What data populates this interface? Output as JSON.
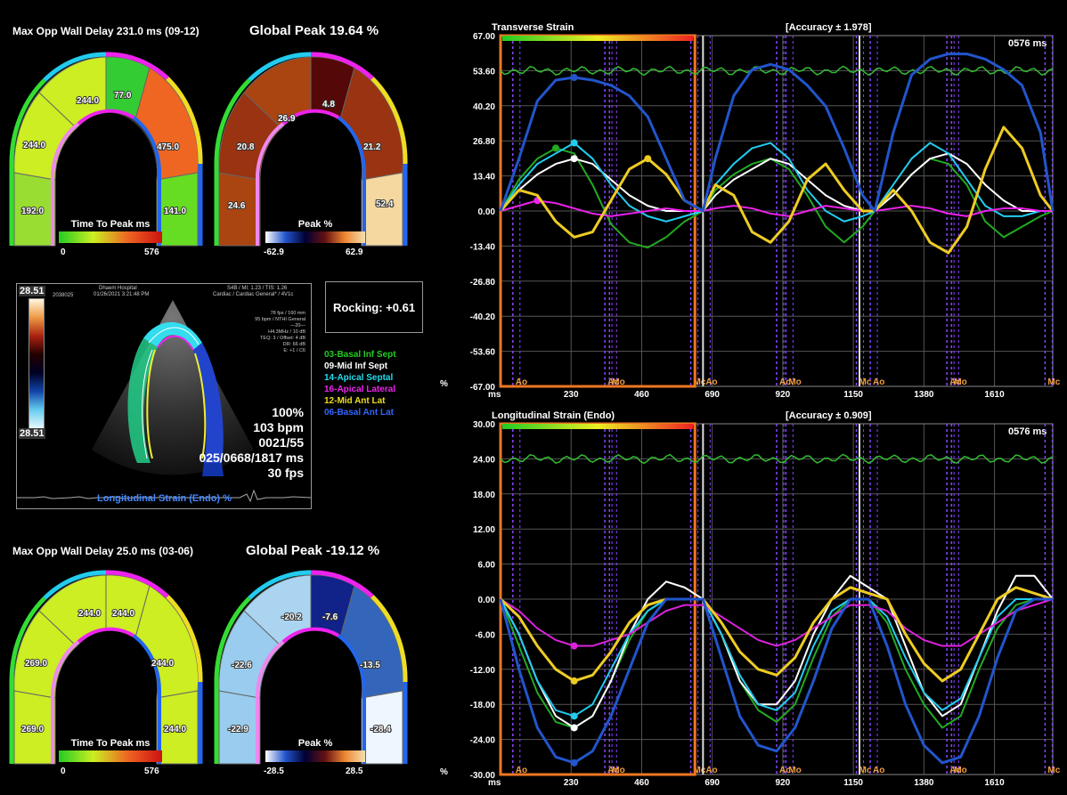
{
  "top_left": {
    "delay_title": "Max Opp Wall Delay 231.0 ms (09-12)",
    "global_peak": "Global Peak 19.64 %",
    "ttp_values": [
      "192.0",
      "244.0",
      "244.0",
      "77.0",
      "475.0",
      "141.0"
    ],
    "ttp_bar_title": "Time To Peak ms",
    "ttp_min": "0",
    "ttp_max": "576",
    "peak_values": [
      "24.6",
      "20.8",
      "26.9",
      "4.8",
      "21.2",
      "52.4"
    ],
    "peak_bar_title": "Peak %",
    "peak_min": "-62.9",
    "peak_max": "62.9"
  },
  "bottom_left": {
    "delay_title": "Max Opp Wall Delay 25.0 ms (03-06)",
    "global_peak": "Global Peak -19.12 %",
    "ttp_values": [
      "269.0",
      "269.0",
      "244.0",
      "244.0",
      "244.0",
      "244.0"
    ],
    "ttp_bar_title": "Time To Peak ms",
    "ttp_min": "0",
    "ttp_max": "576",
    "peak_values": [
      "-22.9",
      "-22.6",
      "-20.2",
      "-7.6",
      "-13.5",
      "-28.4"
    ],
    "peak_bar_title": "Peak %",
    "peak_min": "-28.5",
    "peak_max": "28.5"
  },
  "echo": {
    "scale_top": "28.51",
    "scale_bottom": "28.51",
    "small_text_left": "2038025",
    "hospital": "Dhaem Hospital",
    "date": "01/26/2021 3:21:48 PM",
    "probe_info": "S4B / MI: 1.23 / TIS: 1.26",
    "preset": "Cardiac / Cardiac General* / 4V1c",
    "params": [
      "78 fps / 160 mm",
      "95 bpm / NTHI General",
      "—20—",
      "H4.3MHz / 10 dB",
      "TEQ: 3 / Offset: 4 dB",
      "DR: 66 dB",
      "E: +1 / C6"
    ],
    "zoom": "100%",
    "bpm": "103 bpm",
    "frame": "0021/55",
    "timing": "025/0668/1817 ms",
    "fps": "30 fps",
    "mode": "Longitudinal Strain (Endo) %"
  },
  "rocking": "Rocking: +0.61",
  "legend": [
    {
      "label": "03-Basal Inf Sept",
      "color": "#22cc22"
    },
    {
      "label": "09-Mid Inf Sept",
      "color": "#ffffff"
    },
    {
      "label": "14-Apical Septal",
      "color": "#22ddee"
    },
    {
      "label": "16-Apical Lateral",
      "color": "#ee22ee"
    },
    {
      "label": "12-Mid Ant Lat",
      "color": "#eedd22"
    },
    {
      "label": "06-Basal Ant Lat",
      "color": "#2255ee"
    }
  ],
  "chart_data": [
    {
      "type": "line",
      "title": "Transverse Strain",
      "accuracy": "[Accuracy ± 1.978]",
      "time_label": "0576 ms",
      "ylabel": "%",
      "xlabel": "ms",
      "y_ticks": [
        "67.00",
        "53.60",
        "40.20",
        "26.80",
        "13.40",
        "0.00",
        "-13.40",
        "-26.80",
        "-40.20",
        "-53.60",
        "-67.00"
      ],
      "ylim": [
        -67,
        67
      ],
      "x_ticks": [
        "230",
        "460",
        "690",
        "920",
        "1150",
        "1380",
        "1610"
      ],
      "xlim": [
        0,
        1800
      ],
      "events": [
        {
          "label": "Ao",
          "x": 40
        },
        {
          "label": "Ac",
          "x": 340
        },
        {
          "label": "Mo",
          "x": 355
        },
        {
          "label": "Mc",
          "x": 620
        },
        {
          "label": "Ao",
          "x": 660
        },
        {
          "label": "Ac",
          "x": 900
        },
        {
          "label": "Mo",
          "x": 930
        },
        {
          "label": "Mc",
          "x": 1160
        },
        {
          "label": "Ao",
          "x": 1205
        },
        {
          "label": "Ac",
          "x": 1455
        },
        {
          "label": "Mo",
          "x": 1470
        },
        {
          "label": "Mc",
          "x": 1775
        }
      ],
      "series": [
        {
          "name": "03-Basal Inf Sept",
          "color": "#22aa22",
          "x": [
            0,
            60,
            120,
            180,
            240,
            300,
            360,
            420,
            480,
            540,
            600,
            660,
            700,
            760,
            820,
            880,
            940,
            1000,
            1060,
            1120,
            1180,
            1220,
            1280,
            1340,
            1400,
            1460,
            1520,
            1580,
            1640,
            1700,
            1760,
            1800
          ],
          "y": [
            0,
            12,
            20,
            24,
            22,
            10,
            -5,
            -12,
            -14,
            -10,
            -4,
            0,
            8,
            14,
            18,
            20,
            16,
            6,
            -6,
            -12,
            -6,
            0,
            6,
            14,
            20,
            18,
            10,
            -4,
            -10,
            -6,
            -2,
            0
          ]
        },
        {
          "name": "09-Mid Inf Sept",
          "color": "#ffffff",
          "x": [
            0,
            60,
            120,
            180,
            240,
            300,
            360,
            420,
            480,
            540,
            600,
            660,
            700,
            760,
            820,
            880,
            940,
            1000,
            1060,
            1120,
            1180,
            1220,
            1280,
            1340,
            1400,
            1460,
            1520,
            1580,
            1640,
            1700,
            1760,
            1800
          ],
          "y": [
            0,
            8,
            14,
            18,
            20,
            18,
            12,
            6,
            2,
            0,
            0,
            0,
            6,
            12,
            16,
            20,
            18,
            12,
            6,
            2,
            0,
            0,
            6,
            14,
            20,
            22,
            18,
            10,
            4,
            0,
            0,
            0
          ]
        },
        {
          "name": "14-Apical Septal",
          "color": "#22ccee",
          "x": [
            0,
            60,
            120,
            180,
            240,
            300,
            360,
            420,
            480,
            540,
            600,
            660,
            700,
            760,
            820,
            880,
            940,
            1000,
            1060,
            1120,
            1180,
            1220,
            1280,
            1340,
            1400,
            1460,
            1520,
            1580,
            1640,
            1700,
            1760,
            1800
          ],
          "y": [
            0,
            10,
            18,
            22,
            26,
            20,
            10,
            2,
            -2,
            -4,
            -2,
            0,
            10,
            18,
            24,
            26,
            20,
            8,
            0,
            -4,
            -2,
            0,
            10,
            20,
            26,
            22,
            12,
            2,
            -2,
            -2,
            0,
            0
          ]
        },
        {
          "name": "16-Apical Lateral",
          "color": "#ee22ee",
          "x": [
            0,
            60,
            120,
            180,
            240,
            300,
            360,
            420,
            480,
            540,
            600,
            660,
            700,
            760,
            820,
            880,
            940,
            1000,
            1060,
            1120,
            1180,
            1220,
            1280,
            1340,
            1400,
            1460,
            1520,
            1580,
            1640,
            1700,
            1760,
            1800
          ],
          "y": [
            0,
            2,
            4,
            3,
            1,
            -1,
            -2,
            -1,
            0,
            1,
            0,
            0,
            1,
            2,
            1,
            -1,
            -2,
            0,
            2,
            1,
            0,
            0,
            1,
            2,
            1,
            -1,
            -2,
            0,
            1,
            1,
            0,
            0
          ]
        },
        {
          "name": "12-Mid Ant Lat",
          "color": "#eecc22",
          "x": [
            0,
            60,
            120,
            180,
            240,
            300,
            360,
            420,
            480,
            540,
            600,
            660,
            700,
            760,
            820,
            880,
            940,
            1000,
            1060,
            1120,
            1180,
            1220,
            1280,
            1340,
            1400,
            1460,
            1520,
            1580,
            1640,
            1700,
            1760,
            1800
          ],
          "y": [
            0,
            8,
            6,
            -4,
            -10,
            -8,
            4,
            16,
            20,
            14,
            4,
            0,
            10,
            6,
            -8,
            -12,
            -4,
            12,
            18,
            8,
            0,
            0,
            8,
            0,
            -12,
            -16,
            -6,
            16,
            32,
            24,
            6,
            0
          ]
        },
        {
          "name": "06-Basal Ant Lat",
          "color": "#2255cc",
          "x": [
            0,
            60,
            120,
            180,
            240,
            300,
            360,
            420,
            480,
            540,
            600,
            660,
            700,
            760,
            820,
            880,
            940,
            1000,
            1060,
            1120,
            1180,
            1220,
            1280,
            1340,
            1400,
            1460,
            1520,
            1580,
            1640,
            1700,
            1760,
            1800
          ],
          "y": [
            0,
            20,
            42,
            50,
            51,
            50,
            48,
            44,
            36,
            20,
            4,
            0,
            20,
            44,
            54,
            56,
            54,
            48,
            40,
            24,
            6,
            0,
            30,
            52,
            58,
            60,
            60,
            58,
            54,
            48,
            30,
            0
          ]
        }
      ]
    },
    {
      "type": "line",
      "title": "Longitudinal Strain (Endo)",
      "accuracy": "[Accuracy ± 0.909]",
      "time_label": "0576 ms",
      "ylabel": "%",
      "xlabel": "ms",
      "y_ticks": [
        "30.00",
        "24.00",
        "18.00",
        "12.00",
        "6.00",
        "0.00",
        "-6.00",
        "-12.00",
        "-18.00",
        "-24.00",
        "-30.00"
      ],
      "ylim": [
        -30,
        30
      ],
      "x_ticks": [
        "230",
        "460",
        "690",
        "920",
        "1150",
        "1380",
        "1610"
      ],
      "xlim": [
        0,
        1800
      ],
      "events": [
        {
          "label": "Ao",
          "x": 40
        },
        {
          "label": "Ac",
          "x": 340
        },
        {
          "label": "Mo",
          "x": 355
        },
        {
          "label": "Mc",
          "x": 620
        },
        {
          "label": "Ao",
          "x": 660
        },
        {
          "label": "Ac",
          "x": 900
        },
        {
          "label": "Mo",
          "x": 930
        },
        {
          "label": "Mc",
          "x": 1160
        },
        {
          "label": "Ao",
          "x": 1205
        },
        {
          "label": "Ac",
          "x": 1455
        },
        {
          "label": "Mo",
          "x": 1470
        },
        {
          "label": "Mc",
          "x": 1775
        }
      ],
      "series": [
        {
          "name": "03-Basal Inf Sept",
          "color": "#22aa22",
          "x": [
            0,
            60,
            120,
            180,
            240,
            300,
            360,
            420,
            480,
            540,
            600,
            660,
            720,
            780,
            840,
            900,
            960,
            1020,
            1080,
            1140,
            1200,
            1260,
            1320,
            1380,
            1440,
            1500,
            1560,
            1620,
            1680,
            1740,
            1800
          ],
          "y": [
            0,
            -8,
            -16,
            -21,
            -22,
            -20,
            -14,
            -7,
            -2,
            0,
            0,
            0,
            -6,
            -14,
            -19,
            -21,
            -18,
            -10,
            -3,
            0,
            0,
            -4,
            -12,
            -18,
            -22,
            -20,
            -12,
            -5,
            -1,
            0,
            0
          ]
        },
        {
          "name": "09-Mid Inf Sept",
          "color": "#ffffff",
          "x": [
            0,
            60,
            120,
            180,
            240,
            300,
            360,
            420,
            480,
            540,
            600,
            660,
            720,
            780,
            840,
            900,
            960,
            1020,
            1080,
            1140,
            1200,
            1260,
            1320,
            1380,
            1440,
            1500,
            1560,
            1620,
            1680,
            1740,
            1800
          ],
          "y": [
            0,
            -6,
            -14,
            -20,
            -22,
            -20,
            -14,
            -6,
            0,
            3,
            2,
            0,
            -6,
            -14,
            -18,
            -18,
            -14,
            -6,
            0,
            4,
            2,
            0,
            -8,
            -16,
            -20,
            -18,
            -10,
            -2,
            4,
            4,
            0
          ]
        },
        {
          "name": "14-Apical Septal",
          "color": "#22ccee",
          "x": [
            0,
            60,
            120,
            180,
            240,
            300,
            360,
            420,
            480,
            540,
            600,
            660,
            720,
            780,
            840,
            900,
            960,
            1020,
            1080,
            1140,
            1200,
            1260,
            1320,
            1380,
            1440,
            1500,
            1560,
            1620,
            1680,
            1740,
            1800
          ],
          "y": [
            0,
            -6,
            -14,
            -19,
            -20,
            -18,
            -12,
            -6,
            -2,
            0,
            0,
            0,
            -6,
            -13,
            -18,
            -19,
            -16,
            -8,
            -2,
            0,
            0,
            -3,
            -10,
            -16,
            -19,
            -17,
            -10,
            -3,
            0,
            0,
            0
          ]
        },
        {
          "name": "16-Apical Lateral",
          "color": "#dd22dd",
          "x": [
            0,
            60,
            120,
            180,
            240,
            300,
            360,
            420,
            480,
            540,
            600,
            660,
            720,
            780,
            840,
            900,
            960,
            1020,
            1080,
            1140,
            1200,
            1260,
            1320,
            1380,
            1440,
            1500,
            1560,
            1620,
            1680,
            1740,
            1800
          ],
          "y": [
            0,
            -2,
            -5,
            -7,
            -8,
            -8,
            -7,
            -6,
            -4,
            -2,
            -1,
            -1,
            -3,
            -5,
            -7,
            -8,
            -7,
            -5,
            -3,
            -1,
            -1,
            -2,
            -5,
            -7,
            -8,
            -8,
            -6,
            -4,
            -2,
            -1,
            0
          ]
        },
        {
          "name": "12-Mid Ant Lat",
          "color": "#eecc22",
          "x": [
            0,
            60,
            120,
            180,
            240,
            300,
            360,
            420,
            480,
            540,
            600,
            660,
            720,
            780,
            840,
            900,
            960,
            1020,
            1080,
            1140,
            1200,
            1260,
            1320,
            1380,
            1440,
            1500,
            1560,
            1620,
            1680,
            1740,
            1800
          ],
          "y": [
            0,
            -3,
            -8,
            -12,
            -14,
            -13,
            -9,
            -4,
            -1,
            0,
            0,
            0,
            -4,
            -9,
            -12,
            -13,
            -10,
            -4,
            0,
            2,
            1,
            0,
            -6,
            -11,
            -14,
            -12,
            -6,
            0,
            2,
            1,
            0
          ]
        },
        {
          "name": "06-Basal Ant Lat",
          "color": "#2255cc",
          "x": [
            0,
            60,
            120,
            180,
            240,
            300,
            360,
            420,
            480,
            540,
            600,
            660,
            720,
            780,
            840,
            900,
            960,
            1020,
            1080,
            1140,
            1200,
            1260,
            1320,
            1380,
            1440,
            1500,
            1560,
            1620,
            1680,
            1740,
            1800
          ],
          "y": [
            0,
            -12,
            -22,
            -27,
            -28,
            -26,
            -20,
            -12,
            -4,
            0,
            0,
            0,
            -10,
            -20,
            -25,
            -26,
            -22,
            -14,
            -5,
            0,
            0,
            -8,
            -18,
            -25,
            -28,
            -27,
            -20,
            -10,
            -2,
            0,
            0
          ]
        }
      ]
    }
  ]
}
